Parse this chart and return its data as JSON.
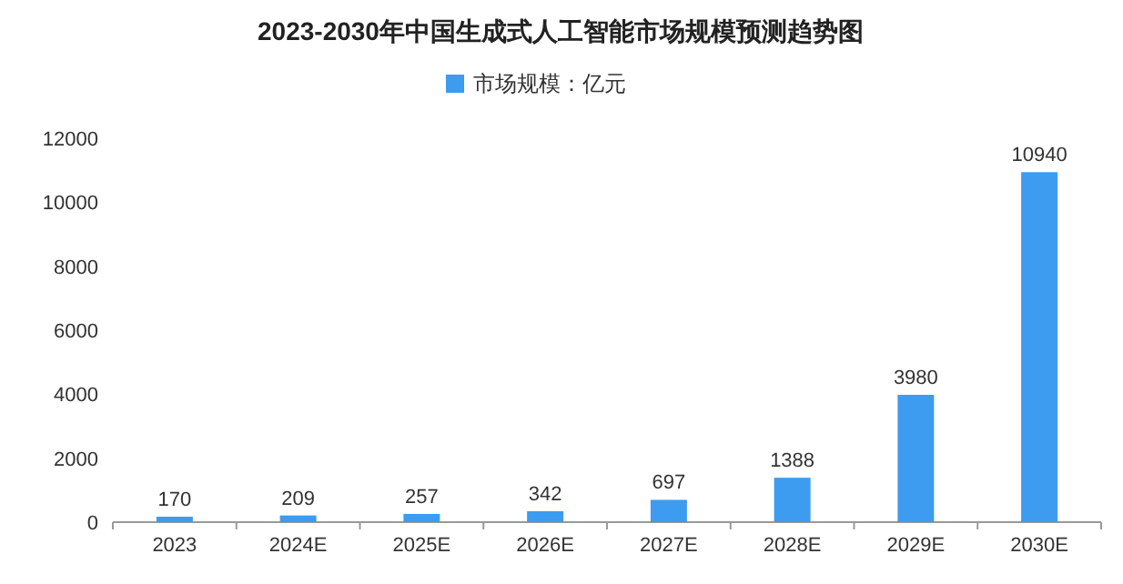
{
  "chart_data": {
    "type": "bar",
    "title": "2023-2030年中国生成式人工智能市场规模预测趋势图",
    "categories": [
      "2023",
      "2024E",
      "2025E",
      "2026E",
      "2027E",
      "2028E",
      "2029E",
      "2030E"
    ],
    "series": [
      {
        "name": "市场规模：亿元",
        "color": "#3d9bf0",
        "values": [
          170,
          209,
          257,
          342,
          697,
          1388,
          3980,
          10940
        ]
      }
    ],
    "ylim": [
      0,
      12000
    ],
    "yticks": [
      0,
      2000,
      4000,
      6000,
      8000,
      10000,
      12000
    ],
    "data_labels": true,
    "legend": "top"
  }
}
